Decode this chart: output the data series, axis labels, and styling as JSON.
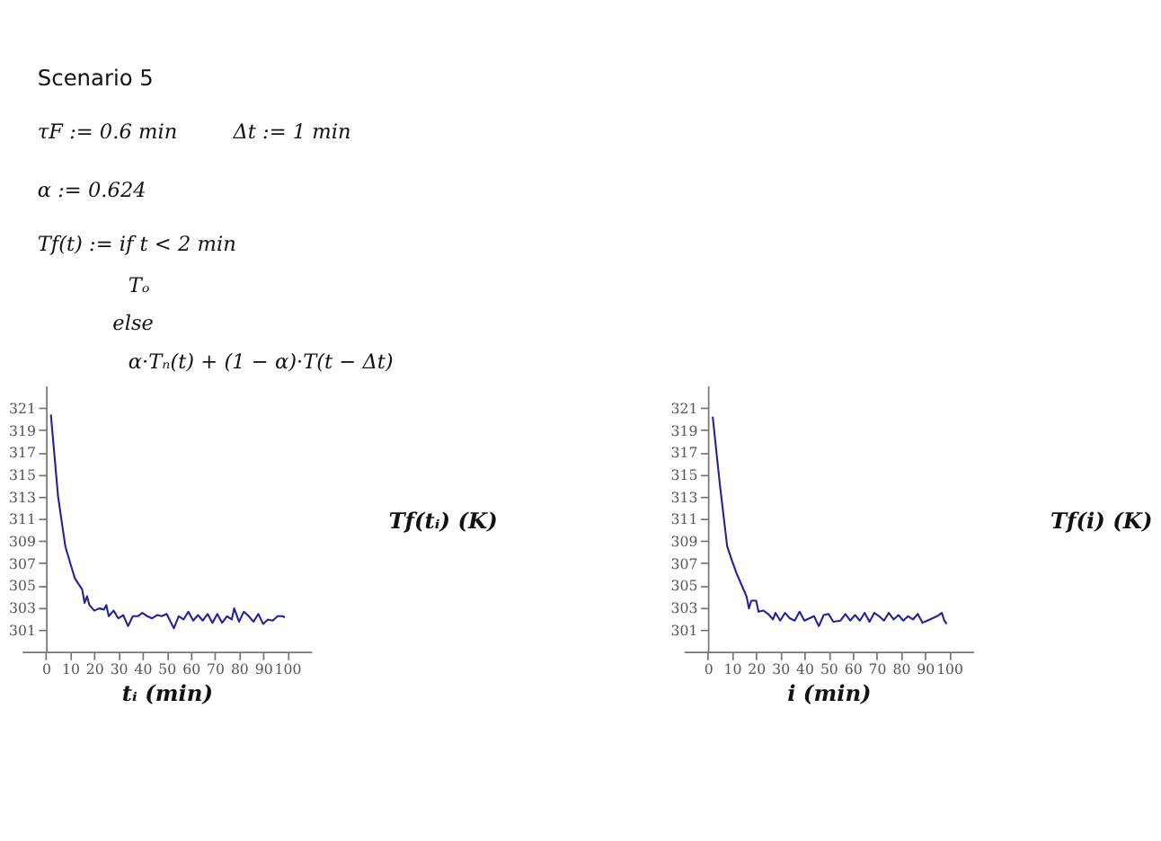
{
  "chart_data": [
    {
      "type": "line",
      "title": "Scenario 5",
      "annotations": [
        "τF := 0.6 min",
        "Δt := 1 min",
        "α := 0.624",
        "Tf(t) := if t < 2 min",
        "Tₒ",
        "else",
        "α·Tₙ(t) + (1 − α)·T(t − Δt)"
      ],
      "xlabel": "tᵢ (min)",
      "ylabel": "Tf(tᵢ) (K)",
      "x": [
        2,
        5,
        8,
        10,
        12,
        15,
        16,
        17,
        18,
        20,
        22,
        24,
        25,
        26,
        28,
        30,
        32,
        34,
        36,
        38,
        40,
        42,
        44,
        46,
        48,
        50,
        53,
        55,
        57,
        59,
        61,
        63,
        65,
        67,
        69,
        71,
        73,
        75,
        77,
        78,
        80,
        82,
        84,
        86,
        88,
        90,
        92,
        94,
        96,
        98,
        99
      ],
      "series": [
        {
          "color": "#22229a",
          "values": [
            320.4,
            313,
            308.5,
            307,
            305.6,
            304.6,
            303.4,
            304,
            303.2,
            302.7,
            302.9,
            302.8,
            303.2,
            302.2,
            302.7,
            302.0,
            302.3,
            301.3,
            302.2,
            302.2,
            302.5,
            302.2,
            302.0,
            302.3,
            302.2,
            302.4,
            301.1,
            302.2,
            301.9,
            302.6,
            301.8,
            302.3,
            301.8,
            302.4,
            301.6,
            302.4,
            301.6,
            302.2,
            301.9,
            302.9,
            301.7,
            302.6,
            302.2,
            301.7,
            302.4,
            301.5,
            301.9,
            301.8,
            302.2,
            302.2,
            302.1
          ]
        }
      ],
      "xlim": [
        -10,
        110
      ],
      "ylim": [
        299,
        323
      ],
      "xticks": [
        0,
        10,
        20,
        30,
        40,
        50,
        60,
        70,
        80,
        90,
        100
      ],
      "yticks": [
        301,
        303,
        305,
        307,
        309,
        311,
        313,
        315,
        317,
        319,
        321
      ],
      "grid": false
    },
    {
      "type": "line",
      "xlabel": "i (min)",
      "ylabel": "Tf(i) (K)",
      "x": [
        2,
        5,
        8,
        10,
        12,
        14,
        16,
        17,
        18,
        20,
        21,
        23,
        25,
        27,
        28,
        30,
        32,
        34,
        36,
        38,
        40,
        42,
        44,
        46,
        48,
        50,
        52,
        55,
        57,
        59,
        61,
        63,
        65,
        67,
        69,
        71,
        73,
        75,
        77,
        79,
        81,
        83,
        85,
        87,
        89,
        91,
        93,
        95,
        97,
        98,
        99
      ],
      "series": [
        {
          "color": "#22229a",
          "values": [
            320.2,
            314,
            308.5,
            307.2,
            306,
            305,
            304,
            302.9,
            303.6,
            303.6,
            302.6,
            302.7,
            302.4,
            301.9,
            302.5,
            301.8,
            302.5,
            302.0,
            301.8,
            302.6,
            301.8,
            302.0,
            302.2,
            301.3,
            302.3,
            302.4,
            301.7,
            301.8,
            302.4,
            301.8,
            302.3,
            301.8,
            302.5,
            301.7,
            302.5,
            302.2,
            301.8,
            302.5,
            301.9,
            302.3,
            301.8,
            302.2,
            301.9,
            302.4,
            301.6,
            301.8,
            302.0,
            302.2,
            302.5,
            301.8,
            301.5
          ]
        }
      ],
      "xlim": [
        -10,
        110
      ],
      "ylim": [
        299,
        323
      ],
      "xticks": [
        0,
        10,
        20,
        30,
        40,
        50,
        60,
        70,
        80,
        90,
        100
      ],
      "yticks": [
        301,
        303,
        305,
        307,
        309,
        311,
        313,
        315,
        317,
        319,
        321
      ],
      "grid": false
    }
  ]
}
